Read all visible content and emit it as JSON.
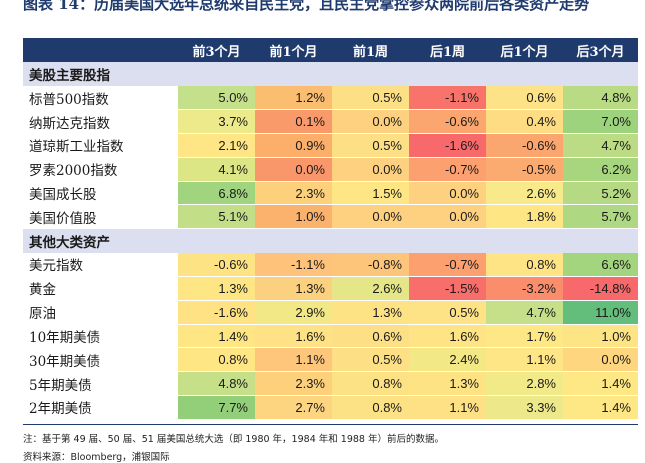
{
  "title": "图表 14：历届美国大选年总统来自民主党，且民主党掌控参众两院前后各类资产走势",
  "columns": [
    "前3个月",
    "前1个月",
    "前1周",
    "后1周",
    "后1个月",
    "后3个月"
  ],
  "sections": [
    {
      "label": "美股主要股指",
      "rows": [
        {
          "name": "标普500指数",
          "values": [
            "5.0%",
            "1.2%",
            "0.5%",
            "-1.1%",
            "0.6%",
            "4.8%"
          ],
          "colors": [
            "#c5e08a",
            "#fbbd6f",
            "#fde086",
            "#f8746b",
            "#fde288",
            "#b9db84"
          ]
        },
        {
          "name": "纳斯达克指数",
          "values": [
            "3.7%",
            "0.1%",
            "0.0%",
            "-0.6%",
            "0.4%",
            "7.0%"
          ],
          "colors": [
            "#ecea8a",
            "#f99a6a",
            "#fdd17f",
            "#fba56f",
            "#fddc83",
            "#9ed37d"
          ]
        },
        {
          "name": "道琼斯工业指数",
          "values": [
            "2.1%",
            "0.9%",
            "0.5%",
            "-1.6%",
            "-0.6%",
            "4.7%"
          ],
          "colors": [
            "#fee585",
            "#fbaf6b",
            "#fde086",
            "#f8696b",
            "#fba56f",
            "#bbdc84"
          ]
        },
        {
          "name": "罗素2000指数",
          "values": [
            "4.1%",
            "0.0%",
            "0.0%",
            "-0.7%",
            "-0.5%",
            "6.2%"
          ],
          "colors": [
            "#dde685",
            "#f9966a",
            "#fdd17f",
            "#fba06e",
            "#fbab70",
            "#a7d67f"
          ]
        },
        {
          "name": "美国成长股",
          "values": [
            "6.8%",
            "2.3%",
            "1.5%",
            "0.0%",
            "2.6%",
            "5.2%"
          ],
          "colors": [
            "#a1d47e",
            "#fdd17c",
            "#fee684",
            "#fdd17f",
            "#f8e98a",
            "#b6da83"
          ]
        },
        {
          "name": "美国价值股",
          "values": [
            "5.1%",
            "1.0%",
            "0.0%",
            "0.0%",
            "1.8%",
            "5.7%"
          ],
          "colors": [
            "#c2df88",
            "#fbb26c",
            "#fdd17f",
            "#fdd17f",
            "#fee685",
            "#aed882"
          ]
        }
      ]
    },
    {
      "label": "其他大类资产",
      "rows": [
        {
          "name": "美元指数",
          "values": [
            "-0.6%",
            "-1.1%",
            "-0.8%",
            "-0.7%",
            "0.8%",
            "6.6%"
          ],
          "colors": [
            "#fee385",
            "#fec27a",
            "#fdc57a",
            "#fba06e",
            "#fee485",
            "#a3d57f"
          ]
        },
        {
          "name": "黄金",
          "values": [
            "1.3%",
            "1.3%",
            "2.6%",
            "-1.5%",
            "-3.2%",
            "-14.8%"
          ],
          "colors": [
            "#fee685",
            "#fbd07e",
            "#e5e687",
            "#f86e6b",
            "#fa8e6c",
            "#f8696b"
          ]
        },
        {
          "name": "原油",
          "values": [
            "-1.6%",
            "2.9%",
            "1.3%",
            "0.5%",
            "4.7%",
            "11.0%"
          ],
          "colors": [
            "#fee284",
            "#f2e886",
            "#fee384",
            "#fee386",
            "#c6e08a",
            "#63be7b"
          ]
        },
        {
          "name": "10年期美债",
          "values": [
            "1.4%",
            "1.6%",
            "0.6%",
            "1.6%",
            "1.7%",
            "1.0%"
          ],
          "colors": [
            "#fee685",
            "#fee285",
            "#fde086",
            "#fee485",
            "#fee785",
            "#fde485"
          ]
        },
        {
          "name": "30年期美债",
          "values": [
            "0.8%",
            "1.1%",
            "0.5%",
            "2.4%",
            "1.1%",
            "0.0%"
          ],
          "colors": [
            "#fee685",
            "#fdc67a",
            "#fde086",
            "#f3e886",
            "#fee585",
            "#fed680"
          ]
        },
        {
          "name": "5年期美债",
          "values": [
            "4.8%",
            "2.3%",
            "0.8%",
            "1.3%",
            "2.8%",
            "1.4%"
          ],
          "colors": [
            "#c6e08a",
            "#fdd17c",
            "#fde285",
            "#fee384",
            "#f2e989",
            "#fde885"
          ]
        },
        {
          "name": "2年期美债",
          "values": [
            "7.7%",
            "2.7%",
            "0.8%",
            "1.1%",
            "3.3%",
            "1.4%"
          ],
          "colors": [
            "#93ce79",
            "#fdd580",
            "#fde285",
            "#fee184",
            "#ede889",
            "#fde885"
          ]
        }
      ]
    }
  ],
  "note": "注：基于第 49 届、50 届、51 届美国总统大选（即 1980 年，1984 年和 1988 年）前后的数据。",
  "source": "资料来源：Bloomberg，浦银国际"
}
